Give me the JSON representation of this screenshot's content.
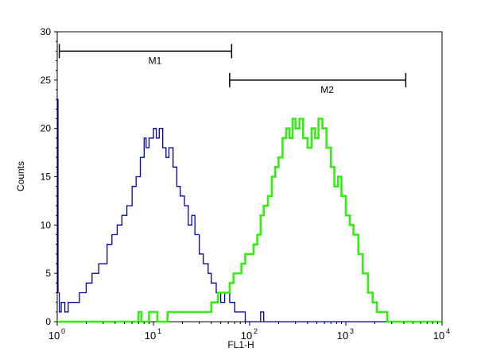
{
  "chart_data": {
    "type": "histogram",
    "xlabel": "FL1-H",
    "ylabel": "Counts",
    "xscale": "log",
    "xlim": [
      1,
      10000
    ],
    "ylim": [
      0,
      30
    ],
    "xticks": [
      {
        "value": 1,
        "base": "10",
        "exp": "0"
      },
      {
        "value": 10,
        "base": "10",
        "exp": "1"
      },
      {
        "value": 100,
        "base": "10",
        "exp": "2"
      },
      {
        "value": 1000,
        "base": "10",
        "exp": "3"
      },
      {
        "value": 10000,
        "base": "10",
        "exp": "4"
      }
    ],
    "yticks": [
      0,
      5,
      10,
      15,
      20,
      25,
      30
    ],
    "grid": false,
    "markers": [
      {
        "label": "M1",
        "x_start": 1.05,
        "x_end": 65,
        "y": 28
      },
      {
        "label": "M2",
        "x_start": 62,
        "x_end": 4200,
        "y": 25
      }
    ],
    "series": [
      {
        "color": "#0000a0",
        "points": [
          [
            1.0,
            23
          ],
          [
            1.02,
            3
          ],
          [
            1.05,
            1
          ],
          [
            1.1,
            2
          ],
          [
            1.2,
            1
          ],
          [
            1.3,
            2
          ],
          [
            1.5,
            2
          ],
          [
            1.7,
            3
          ],
          [
            2.0,
            4
          ],
          [
            2.3,
            5
          ],
          [
            2.7,
            6
          ],
          [
            3.0,
            6
          ],
          [
            3.3,
            8
          ],
          [
            3.7,
            9
          ],
          [
            4.2,
            10
          ],
          [
            4.7,
            11
          ],
          [
            5.3,
            12
          ],
          [
            6.0,
            14
          ],
          [
            6.6,
            15
          ],
          [
            7.3,
            17
          ],
          [
            8.0,
            19
          ],
          [
            8.4,
            18
          ],
          [
            9.0,
            19
          ],
          [
            10.0,
            20
          ],
          [
            10.7,
            19
          ],
          [
            11.5,
            20
          ],
          [
            12.5,
            18
          ],
          [
            13.5,
            17
          ],
          [
            14.5,
            18
          ],
          [
            16.0,
            16
          ],
          [
            17.5,
            14
          ],
          [
            19.0,
            13
          ],
          [
            21.0,
            12
          ],
          [
            23.0,
            10
          ],
          [
            25.0,
            11
          ],
          [
            27.0,
            9
          ],
          [
            30.0,
            7
          ],
          [
            33.0,
            6
          ],
          [
            37.0,
            5
          ],
          [
            40.0,
            4
          ],
          [
            45.0,
            3
          ],
          [
            50.0,
            2
          ],
          [
            55.0,
            3
          ],
          [
            62.0,
            2
          ],
          [
            70.0,
            1
          ],
          [
            80.0,
            1
          ],
          [
            90.0,
            0
          ],
          [
            130.0,
            1
          ],
          [
            140.0,
            0
          ],
          [
            10000,
            0
          ]
        ]
      },
      {
        "color": "#33ee11",
        "points": [
          [
            1.0,
            0
          ],
          [
            6.5,
            0
          ],
          [
            7.0,
            1
          ],
          [
            7.5,
            0
          ],
          [
            9.0,
            1
          ],
          [
            11.0,
            0
          ],
          [
            14.0,
            1
          ],
          [
            20.0,
            1
          ],
          [
            27.0,
            1
          ],
          [
            33.0,
            1
          ],
          [
            40.0,
            2
          ],
          [
            47.0,
            3
          ],
          [
            55.0,
            3
          ],
          [
            62.0,
            4
          ],
          [
            68.0,
            5
          ],
          [
            75.0,
            5
          ],
          [
            82.0,
            6
          ],
          [
            90.0,
            7
          ],
          [
            100.0,
            7
          ],
          [
            110.0,
            8
          ],
          [
            120.0,
            9
          ],
          [
            130.0,
            11
          ],
          [
            140.0,
            12
          ],
          [
            155.0,
            13
          ],
          [
            170.0,
            15
          ],
          [
            185.0,
            16
          ],
          [
            200.0,
            17
          ],
          [
            220.0,
            19
          ],
          [
            240.0,
            20
          ],
          [
            260.0,
            19
          ],
          [
            280.0,
            21
          ],
          [
            300.0,
            20
          ],
          [
            330.0,
            21
          ],
          [
            360.0,
            19
          ],
          [
            400.0,
            18
          ],
          [
            440.0,
            20
          ],
          [
            480.0,
            19
          ],
          [
            520.0,
            21
          ],
          [
            570.0,
            20
          ],
          [
            630.0,
            18
          ],
          [
            700.0,
            16
          ],
          [
            760.0,
            14
          ],
          [
            830.0,
            15
          ],
          [
            900.0,
            13
          ],
          [
            1000.0,
            11
          ],
          [
            1100.0,
            10
          ],
          [
            1200.0,
            9
          ],
          [
            1350.0,
            7
          ],
          [
            1500.0,
            5
          ],
          [
            1700.0,
            3
          ],
          [
            1900.0,
            2
          ],
          [
            2100.0,
            1
          ],
          [
            2400.0,
            1
          ],
          [
            2700.0,
            0
          ],
          [
            10000,
            0
          ]
        ]
      }
    ]
  }
}
